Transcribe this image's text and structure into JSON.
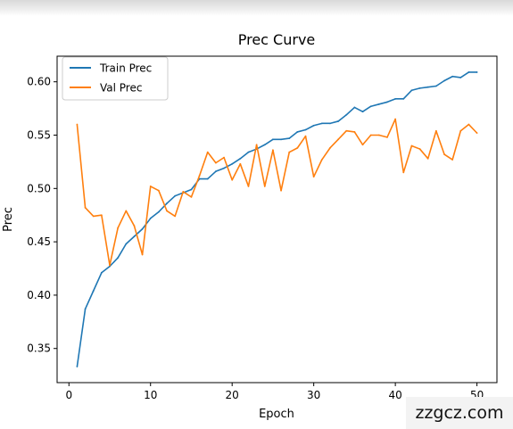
{
  "chart_data": {
    "type": "line",
    "title": "Prec Curve",
    "xlabel": "Epoch",
    "ylabel": "Prec",
    "xlim": [
      -1.45,
      52.45
    ],
    "ylim": [
      0.318,
      0.624
    ],
    "xticks": [
      0,
      10,
      20,
      30,
      40,
      50
    ],
    "yticks": [
      0.35,
      0.4,
      0.45,
      0.5,
      0.55,
      0.6
    ],
    "ytick_labels": [
      "0.35",
      "0.40",
      "0.45",
      "0.50",
      "0.55",
      "0.60"
    ],
    "grid": false,
    "legend": "upper left",
    "x": [
      1,
      2,
      3,
      4,
      5,
      6,
      7,
      8,
      9,
      10,
      11,
      12,
      13,
      14,
      15,
      16,
      17,
      18,
      19,
      20,
      21,
      22,
      23,
      24,
      25,
      26,
      27,
      28,
      29,
      30,
      31,
      32,
      33,
      34,
      35,
      36,
      37,
      38,
      39,
      40,
      41,
      42,
      43,
      44,
      45,
      46,
      47,
      48,
      49,
      50
    ],
    "series": [
      {
        "name": "Train Prec",
        "color": "#1f77b4",
        "values": [
          0.333,
          0.387,
          0.404,
          0.421,
          0.427,
          0.435,
          0.448,
          0.455,
          0.462,
          0.472,
          0.478,
          0.486,
          0.493,
          0.496,
          0.499,
          0.509,
          0.509,
          0.516,
          0.519,
          0.523,
          0.528,
          0.534,
          0.537,
          0.541,
          0.546,
          0.546,
          0.547,
          0.553,
          0.555,
          0.559,
          0.561,
          0.561,
          0.563,
          0.569,
          0.576,
          0.572,
          0.577,
          0.579,
          0.581,
          0.584,
          0.584,
          0.592,
          0.594,
          0.595,
          0.596,
          0.601,
          0.605,
          0.604,
          0.609,
          0.609
        ]
      },
      {
        "name": "Val Prec",
        "color": "#ff7f0e",
        "values": [
          0.56,
          0.482,
          0.474,
          0.475,
          0.428,
          0.463,
          0.479,
          0.465,
          0.438,
          0.502,
          0.498,
          0.479,
          0.474,
          0.497,
          0.492,
          0.512,
          0.534,
          0.524,
          0.529,
          0.508,
          0.523,
          0.502,
          0.541,
          0.502,
          0.536,
          0.498,
          0.534,
          0.538,
          0.549,
          0.511,
          0.527,
          0.538,
          0.546,
          0.554,
          0.553,
          0.541,
          0.55,
          0.55,
          0.548,
          0.565,
          0.515,
          0.54,
          0.537,
          0.528,
          0.554,
          0.532,
          0.527,
          0.554,
          0.56,
          0.552
        ]
      }
    ]
  },
  "watermark": "zzgcz.com"
}
